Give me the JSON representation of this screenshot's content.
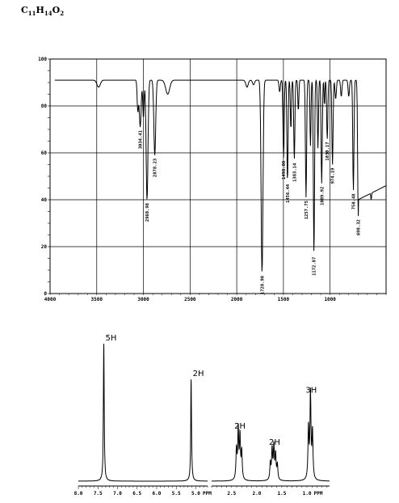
{
  "formula": {
    "c": "C",
    "cn": "11",
    "h": "H",
    "hn": "14",
    "o": "O",
    "on": "2"
  },
  "chart_data": [
    {
      "type": "line",
      "name_in_image": "IR spectrum",
      "xlim": [
        4000,
        400
      ],
      "ylim": [
        0,
        100
      ],
      "x_ticks": [
        "4000",
        "3500",
        "3000",
        "2500",
        "2000",
        "1500",
        "1000"
      ],
      "y_ticks": [
        "100",
        "80",
        "60",
        "40",
        "20",
        "0"
      ],
      "grid": true,
      "baseline": 91,
      "peaks": [
        {
          "x": 3034.41,
          "y": 71,
          "label": "3034.41"
        },
        {
          "x": 2960.98,
          "y": 40,
          "label": "2960.98"
        },
        {
          "x": 2878.23,
          "y": 59,
          "label": "2878.23"
        },
        {
          "x": 1728.98,
          "y": 9,
          "label": "1728.98"
        },
        {
          "x": 1498.0,
          "y": 58,
          "label": "1498.00"
        },
        {
          "x": 1456.44,
          "y": 48,
          "label": "1456.44"
        },
        {
          "x": 1383.14,
          "y": 57,
          "label": "1383.14"
        },
        {
          "x": 1257.75,
          "y": 41,
          "label": "1257.75"
        },
        {
          "x": 1172.87,
          "y": 17,
          "label": "1172.87"
        },
        {
          "x": 1089.92,
          "y": 47,
          "label": "1089.92"
        },
        {
          "x": 1030.17,
          "y": 66,
          "label": "1030.17"
        },
        {
          "x": 974.19,
          "y": 55,
          "label": "974.19"
        },
        {
          "x": 750.48,
          "y": 44,
          "label": "750.48"
        },
        {
          "x": 698.32,
          "y": 33,
          "label": "698.32"
        }
      ]
    },
    {
      "type": "line",
      "name_in_image": "1H NMR spectrum",
      "xlim": [
        8.0,
        0.0
      ],
      "x_ticks": [
        "8.0",
        "7.5",
        "7.0",
        "6.5",
        "6.0",
        "5.5",
        "5.0"
      ],
      "x_ticks_right": [
        "2.5",
        "2.0",
        "1.5",
        "1.0"
      ],
      "unit": "PPM",
      "peaks": [
        {
          "ppm": 7.35,
          "height": 1.0,
          "integration": "5H"
        },
        {
          "ppm": 5.12,
          "height": 0.74,
          "integration": "2H"
        },
        {
          "ppm": 2.35,
          "height": 0.36,
          "integration": "2H"
        },
        {
          "ppm": 1.66,
          "height": 0.24,
          "integration": "2H"
        },
        {
          "ppm": 0.93,
          "height": 0.62,
          "integration": "3H"
        }
      ]
    }
  ]
}
